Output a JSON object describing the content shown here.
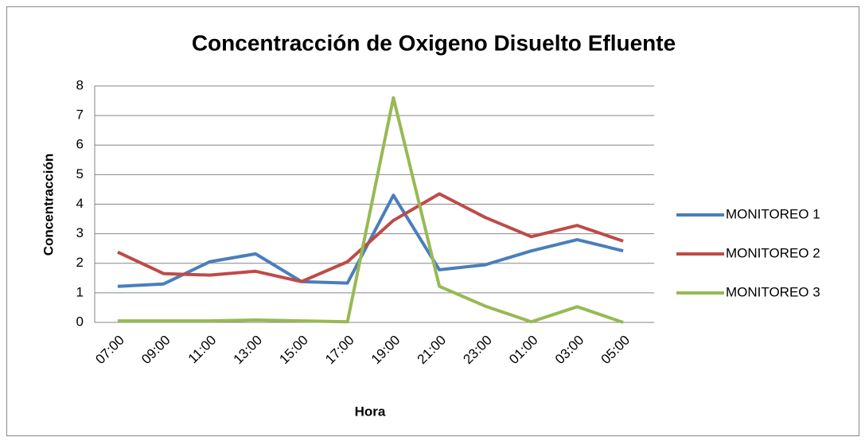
{
  "chart_data": {
    "type": "line",
    "title": "Concentracción de Oxigeno Disuelto Efluente",
    "x_label": "Hora",
    "y_label": "Concentracción",
    "categories": [
      "07:00",
      "09:00",
      "11:00",
      "13:00",
      "15:00",
      "17:00",
      "19:00",
      "21:00",
      "23:00",
      "01:00",
      "03:00",
      "05:00"
    ],
    "series": [
      {
        "name": "MONITOREO 1",
        "color": "#4a7ebb",
        "values": [
          1.22,
          1.3,
          2.05,
          2.32,
          1.38,
          1.33,
          4.3,
          1.78,
          1.95,
          2.42,
          2.8,
          2.42
        ]
      },
      {
        "name": "MONITOREO 2",
        "color": "#be4b48",
        "values": [
          2.38,
          1.65,
          1.6,
          1.73,
          1.38,
          2.05,
          3.45,
          4.35,
          3.55,
          2.9,
          3.28,
          2.75
        ]
      },
      {
        "name": "MONITOREO 3",
        "color": "#98b954",
        "values": [
          0.05,
          0.05,
          0.05,
          0.08,
          0.05,
          0.02,
          7.6,
          1.22,
          0.55,
          0.02,
          0.53,
          0.0
        ]
      }
    ],
    "ylim": [
      0,
      8
    ],
    "yticks": [
      0,
      1,
      2,
      3,
      4,
      5,
      6,
      7,
      8
    ],
    "grid": true,
    "legend": "right"
  }
}
